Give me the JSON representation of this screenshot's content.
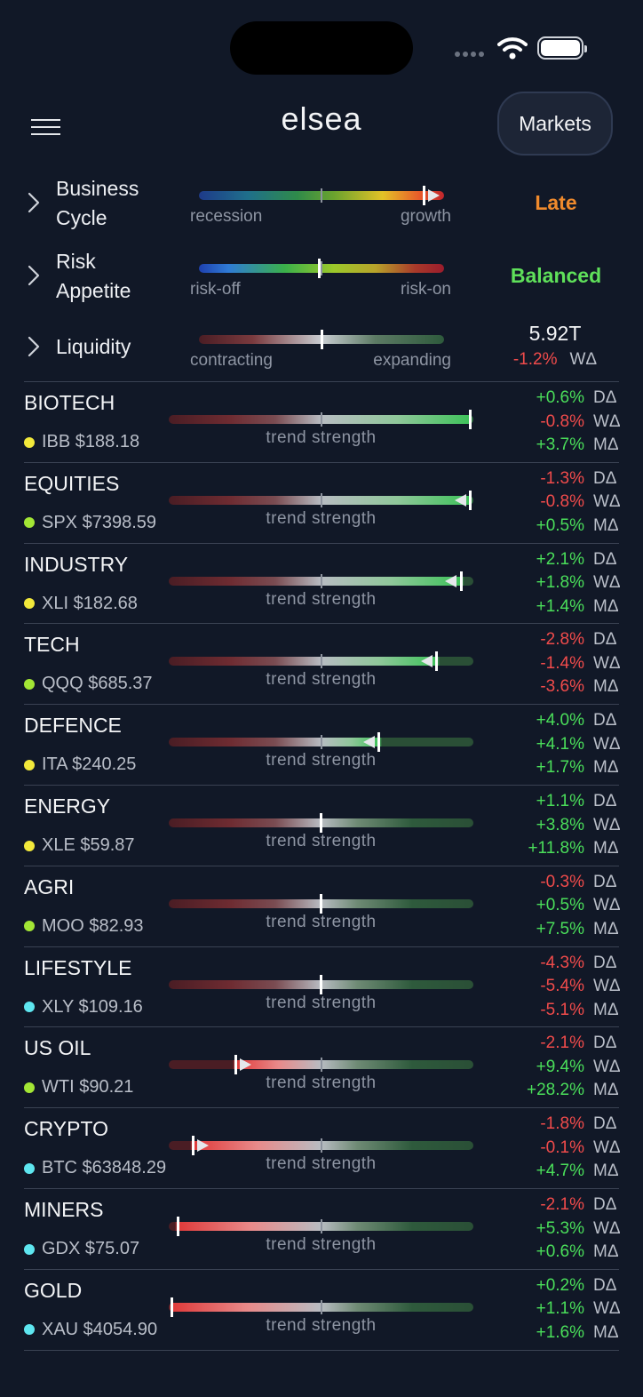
{
  "app": {
    "brand": "elsea",
    "markets_label": "Markets"
  },
  "macro": [
    {
      "label_lines": [
        "Business",
        "Cycle"
      ],
      "low": "recession",
      "high": "growth",
      "state": "Late",
      "state_color": "#f08a2c",
      "level": 0.92
    },
    {
      "label_lines": [
        "Risk",
        "Appetite"
      ],
      "low": "risk-off",
      "high": "risk-on",
      "state": "Balanced",
      "state_color": "#5fe05a",
      "level": 0.49
    },
    {
      "label_lines": [
        "Liquidity"
      ],
      "low": "contracting",
      "high": "expanding",
      "value": "5.92T",
      "change": "-1.2%",
      "change_key": "WΔ",
      "level": 0.5
    }
  ],
  "trend_label": "trend strength",
  "sectors": [
    {
      "name": "BIOTECH",
      "ticker": "IBB $188.18",
      "dot": "#f2e93b",
      "level": 0.99,
      "arrow": "none",
      "changes": [
        [
          "+0.6%",
          "DΔ"
        ],
        [
          "-0.8%",
          "WΔ"
        ],
        [
          "+3.7%",
          "MΔ"
        ]
      ]
    },
    {
      "name": "EQUITIES",
      "ticker": "SPX $7398.59",
      "dot": "#a3e635",
      "level": 0.99,
      "arrow": "left",
      "changes": [
        [
          "-1.3%",
          "DΔ"
        ],
        [
          "-0.8%",
          "WΔ"
        ],
        [
          "+0.5%",
          "MΔ"
        ]
      ]
    },
    {
      "name": "INDUSTRY",
      "ticker": "XLI $182.68",
      "dot": "#f2e93b",
      "level": 0.96,
      "arrow": "left",
      "changes": [
        [
          "+2.1%",
          "DΔ"
        ],
        [
          "+1.8%",
          "WΔ"
        ],
        [
          "+1.4%",
          "MΔ"
        ]
      ]
    },
    {
      "name": "TECH",
      "ticker": "QQQ $685.37",
      "dot": "#a3e635",
      "level": 0.88,
      "arrow": "left",
      "changes": [
        [
          "-2.8%",
          "DΔ"
        ],
        [
          "-1.4%",
          "WΔ"
        ],
        [
          "-3.6%",
          "MΔ"
        ]
      ]
    },
    {
      "name": "DEFENCE",
      "ticker": "ITA $240.25",
      "dot": "#f2e93b",
      "level": 0.69,
      "arrow": "left",
      "changes": [
        [
          "+4.0%",
          "DΔ"
        ],
        [
          "+4.1%",
          "WΔ"
        ],
        [
          "+1.7%",
          "MΔ"
        ]
      ]
    },
    {
      "name": "ENERGY",
      "ticker": "XLE $59.87",
      "dot": "#f2e93b",
      "level": 0.5,
      "arrow": "none",
      "changes": [
        [
          "+1.1%",
          "DΔ"
        ],
        [
          "+3.8%",
          "WΔ"
        ],
        [
          "+11.8%",
          "MΔ"
        ]
      ]
    },
    {
      "name": "AGRI",
      "ticker": "MOO $82.93",
      "dot": "#a3e635",
      "level": 0.5,
      "arrow": "none",
      "changes": [
        [
          "-0.3%",
          "DΔ"
        ],
        [
          "+0.5%",
          "WΔ"
        ],
        [
          "+7.5%",
          "MΔ"
        ]
      ]
    },
    {
      "name": "LIFESTYLE",
      "ticker": "XLY $109.16",
      "dot": "#5ee6f0",
      "level": 0.5,
      "arrow": "none",
      "changes": [
        [
          "-4.3%",
          "DΔ"
        ],
        [
          "-5.4%",
          "WΔ"
        ],
        [
          "-5.1%",
          "MΔ"
        ]
      ]
    },
    {
      "name": "US OIL",
      "ticker": "WTI $90.21",
      "dot": "#a3e635",
      "level": 0.22,
      "arrow": "right",
      "changes": [
        [
          "-2.1%",
          "DΔ"
        ],
        [
          "+9.4%",
          "WΔ"
        ],
        [
          "+28.2%",
          "MΔ"
        ]
      ]
    },
    {
      "name": "CRYPTO",
      "ticker": "BTC $63848.29",
      "dot": "#5ee6f0",
      "level": 0.08,
      "arrow": "right",
      "changes": [
        [
          "-1.8%",
          "DΔ"
        ],
        [
          "-0.1%",
          "WΔ"
        ],
        [
          "+4.7%",
          "MΔ"
        ]
      ]
    },
    {
      "name": "MINERS",
      "ticker": "GDX $75.07",
      "dot": "#5ee6f0",
      "level": 0.03,
      "arrow": "none",
      "changes": [
        [
          "-2.1%",
          "DΔ"
        ],
        [
          "+5.3%",
          "WΔ"
        ],
        [
          "+0.6%",
          "MΔ"
        ]
      ]
    },
    {
      "name": "GOLD",
      "ticker": "XAU $4054.90",
      "dot": "#5ee6f0",
      "level": 0.01,
      "arrow": "none",
      "changes": [
        [
          "+0.2%",
          "DΔ"
        ],
        [
          "+1.1%",
          "WΔ"
        ],
        [
          "+1.6%",
          "MΔ"
        ]
      ]
    }
  ]
}
